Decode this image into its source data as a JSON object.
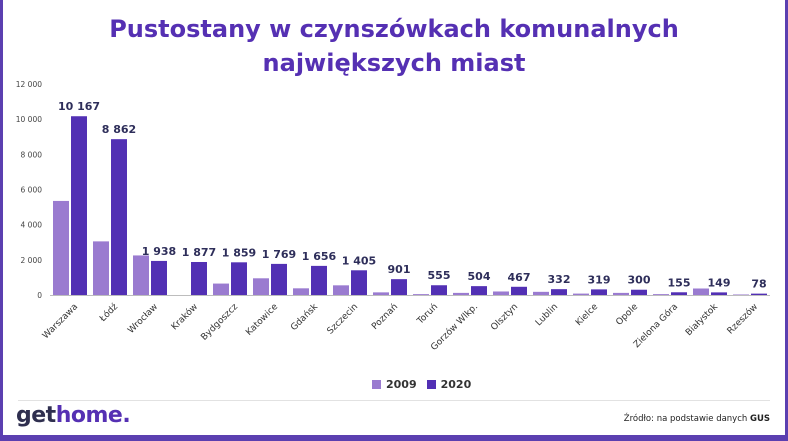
{
  "title_lines": [
    "Pustostany w czynszówkach komunalnych",
    "największych miast"
  ],
  "colors": {
    "series_2009": "#9a7bd0",
    "series_2020": "#5230b4",
    "title": "#5530b3",
    "border": "#5b3fb0"
  },
  "legend": {
    "items": [
      "2009",
      "2020"
    ]
  },
  "logo": {
    "part1": "get",
    "part2": "home",
    "dot": "."
  },
  "source": {
    "prefix": "Źródło: na podstawie danych",
    "bold": "GUS"
  },
  "chart_data": {
    "type": "bar",
    "categories": [
      "Warszawa",
      "Łódź",
      "Wrocław",
      "Kraków",
      "Bydgoszcz",
      "Katowice",
      "Gdańsk",
      "Szczecin",
      "Poznań",
      "Toruń",
      "Gorzów Wlkp.",
      "Olsztyn",
      "Lublin",
      "Kielce",
      "Opole",
      "Zielona Góra",
      "Białystok",
      "Rzeszów"
    ],
    "series": [
      {
        "name": "2009",
        "values": [
          5350,
          3050,
          2250,
          0,
          650,
          950,
          380,
          550,
          150,
          50,
          120,
          200,
          180,
          80,
          120,
          50,
          370,
          30
        ]
      },
      {
        "name": "2020",
        "values": [
          10167,
          8862,
          1938,
          1877,
          1859,
          1769,
          1656,
          1405,
          901,
          555,
          504,
          467,
          332,
          319,
          300,
          155,
          149,
          78
        ]
      }
    ],
    "data_labels_2020": [
      "10 167",
      "8 862",
      "1 938",
      "1 877",
      "1 859",
      "1 769",
      "1 656",
      "1 405",
      "901",
      "555",
      "504",
      "467",
      "332",
      "319",
      "300",
      "155",
      "149",
      "78"
    ],
    "y_ticks": [
      0,
      2000,
      4000,
      6000,
      8000,
      10000,
      12000
    ],
    "y_tick_labels": [
      "0",
      "2 000",
      "4 000",
      "6 000",
      "8 000",
      "10 000",
      "12 000"
    ],
    "ylim": [
      0,
      12000
    ],
    "grid": false,
    "legend_position": "bottom"
  }
}
